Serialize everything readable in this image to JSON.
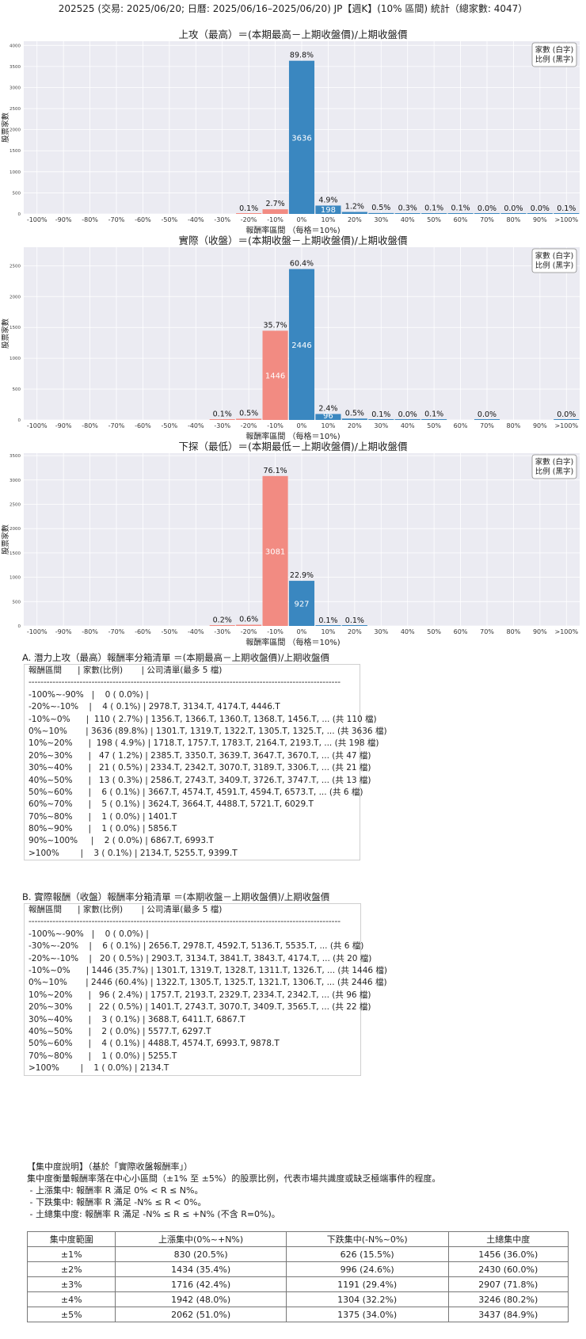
{
  "header": {
    "title": "202525 (交易: 2025/06/20; 日曆: 2025/06/16–2025/06/20) JP【週K】(10% 區間) 統計（總家數: 4047）"
  },
  "chart_data": [
    {
      "type": "bar",
      "title": "上攻（最高）＝(本期最高－上期收盤價)/上期收盤價",
      "xlabel": "報酬率區間 （每格＝10%)",
      "ylabel": "股票家數",
      "legend": [
        "家數 (白字)",
        "比例 (黑字)"
      ],
      "legend_position": "top-right",
      "categories": [
        "-100%",
        "-90%",
        "-80%",
        "-70%",
        "-60%",
        "-50%",
        "-40%",
        "-30%",
        "-20%",
        "-10%",
        "0%",
        "10%",
        "20%",
        "30%",
        "40%",
        "50%",
        "60%",
        "70%",
        "80%",
        "90%",
        ">100%"
      ],
      "ylim": [
        0,
        4100
      ],
      "yticks": [
        0,
        500,
        1000,
        1500,
        2000,
        2500,
        3000,
        3500,
        4000
      ],
      "series": [
        {
          "values": [
            0,
            0,
            0,
            0,
            0,
            0,
            0,
            0,
            4,
            110,
            3636,
            198,
            47,
            21,
            13,
            6,
            5,
            1,
            1,
            2,
            3
          ],
          "ratio_labels": [
            "",
            "",
            "",
            "",
            "",
            "",
            "",
            "",
            "0.1%",
            "2.7%",
            "89.8%",
            "4.9%",
            "1.2%",
            "0.5%",
            "0.3%",
            "0.1%",
            "0.1%",
            "0.0%",
            "0.0%",
            "0.0%",
            "0.1%"
          ],
          "count_labels": [
            "",
            "",
            "",
            "",
            "",
            "",
            "",
            "",
            "",
            "",
            "3636",
            "198",
            "",
            "",
            "",
            "",
            "",
            "",
            "",
            "",
            ""
          ]
        }
      ]
    },
    {
      "type": "bar",
      "title": "實際（收盤）＝(本期收盤－上期收盤價)/上期收盤價",
      "xlabel": "報酬率區間 （每格＝10%)",
      "ylabel": "股票家數",
      "legend": [
        "家數 (白字)",
        "比例 (黑字)"
      ],
      "legend_position": "top-right",
      "categories": [
        "-100%",
        "-90%",
        "-80%",
        "-70%",
        "-60%",
        "-50%",
        "-40%",
        "-30%",
        "-20%",
        "-10%",
        "0%",
        "10%",
        "20%",
        "30%",
        "40%",
        "50%",
        "60%",
        "70%",
        "80%",
        "90%",
        ">100%"
      ],
      "ylim": [
        0,
        2800
      ],
      "yticks": [
        0,
        500,
        1000,
        1500,
        2000,
        2500
      ],
      "series": [
        {
          "values": [
            0,
            0,
            0,
            0,
            0,
            0,
            0,
            6,
            20,
            1446,
            2446,
            96,
            22,
            3,
            2,
            4,
            0,
            1,
            0,
            0,
            1
          ],
          "ratio_labels": [
            "",
            "",
            "",
            "",
            "",
            "",
            "",
            "0.1%",
            "0.5%",
            "35.7%",
            "60.4%",
            "2.4%",
            "0.5%",
            "0.1%",
            "0.0%",
            "0.1%",
            "",
            "0.0%",
            "",
            "",
            "0.0%"
          ],
          "count_labels": [
            "",
            "",
            "",
            "",
            "",
            "",
            "",
            "",
            "",
            "1446",
            "2446",
            "96",
            "",
            "",
            "",
            "",
            "",
            "",
            "",
            "",
            ""
          ]
        }
      ]
    },
    {
      "type": "bar",
      "title": "下探（最低）＝(本期最低－上期收盤價)/上期收盤價",
      "xlabel": "報酬率區間 （每格＝10%)",
      "ylabel": "股票家數",
      "legend": [
        "家數 (白字)",
        "比例 (黑字)"
      ],
      "legend_position": "top-right",
      "categories": [
        "-100%",
        "-90%",
        "-80%",
        "-70%",
        "-60%",
        "-50%",
        "-40%",
        "-30%",
        "-20%",
        "-10%",
        "0%",
        "10%",
        "20%",
        "30%",
        "40%",
        "50%",
        "60%",
        "70%",
        "80%",
        "90%",
        ">100%"
      ],
      "ylim": [
        0,
        3550
      ],
      "yticks": [
        0,
        500,
        1000,
        1500,
        2000,
        2500,
        3000,
        3500
      ],
      "series": [
        {
          "values": [
            0,
            0,
            0,
            0,
            0,
            0,
            0,
            8,
            24,
            3081,
            927,
            3,
            2,
            0,
            0,
            0,
            0,
            0,
            0,
            0,
            0
          ],
          "ratio_labels": [
            "",
            "",
            "",
            "",
            "",
            "",
            "",
            "0.2%",
            "0.6%",
            "76.1%",
            "22.9%",
            "0.1%",
            "0.1%",
            "",
            "",
            "",
            "",
            "",
            "",
            "",
            ""
          ],
          "count_labels": [
            "",
            "",
            "",
            "",
            "",
            "",
            "",
            "",
            "",
            "3081",
            "927",
            "",
            "",
            "",
            "",
            "",
            "",
            "",
            "",
            "",
            ""
          ]
        }
      ]
    }
  ],
  "colors": {
    "negative": "#f28b82",
    "positive": "#3a87c0",
    "plot_bg": "#ebebf2",
    "grid": "#ffffff"
  },
  "section_a": {
    "heading": "A. 潛力上攻（最高）報酬率分箱清單 ＝(本期最高－上期收盤價)/上期收盤價",
    "rows": [
      "報酬區間      | 家數(比例)       | 公司清單(最多 5 檔)",
      "--------------------------------------------------------------------------------------------------------",
      "-100%~-90%   |    0 ( 0.0%) |",
      "-20%~-10%    |    4 ( 0.1%) | 2978.T, 3134.T, 4174.T, 4446.T",
      "-10%~0%      |  110 ( 2.7%) | 1356.T, 1366.T, 1360.T, 1368.T, 1456.T, ... (共 110 檔)",
      "0%~10%       | 3636 (89.8%) | 1301.T, 1319.T, 1322.T, 1305.T, 1325.T, ... (共 3636 檔)",
      "10%~20%      |  198 ( 4.9%) | 1718.T, 1757.T, 1783.T, 2164.T, 2193.T, ... (共 198 檔)",
      "20%~30%      |   47 ( 1.2%) | 2385.T, 3350.T, 3639.T, 3647.T, 3670.T, ... (共 47 檔)",
      "30%~40%      |   21 ( 0.5%) | 2334.T, 2342.T, 3070.T, 3189.T, 3306.T, ... (共 21 檔)",
      "40%~50%      |   13 ( 0.3%) | 2586.T, 2743.T, 3409.T, 3726.T, 3747.T, ... (共 13 檔)",
      "50%~60%      |    6 ( 0.1%) | 3667.T, 4574.T, 4591.T, 4594.T, 6573.T, ... (共 6 檔)",
      "60%~70%      |    5 ( 0.1%) | 3624.T, 3664.T, 4488.T, 5721.T, 6029.T",
      "70%~80%      |    1 ( 0.0%) | 1401.T",
      "80%~90%      |    1 ( 0.0%) | 5856.T",
      "90%~100%     |    2 ( 0.0%) | 6867.T, 6993.T",
      ">100%        |    3 ( 0.1%) | 2134.T, 5255.T, 9399.T"
    ]
  },
  "section_b": {
    "heading": "B. 實際報酬（收盤）報酬率分箱清單 ＝(本期收盤－上期收盤價)/上期收盤價",
    "rows": [
      "報酬區間      | 家數(比例)       | 公司清單(最多 5 檔)",
      "--------------------------------------------------------------------------------------------------------",
      "-100%~-90%   |    0 ( 0.0%) |",
      "-30%~-20%    |    6 ( 0.1%) | 2656.T, 2978.T, 4592.T, 5136.T, 5535.T, ... (共 6 檔)",
      "-20%~-10%    |   20 ( 0.5%) | 2903.T, 3134.T, 3841.T, 3843.T, 4174.T, ... (共 20 檔)",
      "-10%~0%      | 1446 (35.7%) | 1301.T, 1319.T, 1328.T, 1311.T, 1326.T, ... (共 1446 檔)",
      "0%~10%       | 2446 (60.4%) | 1322.T, 1305.T, 1325.T, 1321.T, 1306.T, ... (共 2446 檔)",
      "10%~20%      |   96 ( 2.4%) | 1757.T, 2193.T, 2329.T, 2334.T, 2342.T, ... (共 96 檔)",
      "20%~30%      |   22 ( 0.5%) | 1401.T, 2743.T, 3070.T, 3409.T, 3565.T, ... (共 22 檔)",
      "30%~40%      |    3 ( 0.1%) | 3688.T, 6411.T, 6867.T",
      "40%~50%      |    2 ( 0.0%) | 5577.T, 6297.T",
      "50%~60%      |    4 ( 0.1%) | 4488.T, 4574.T, 6993.T, 9878.T",
      "70%~80%      |    1 ( 0.0%) | 5255.T",
      ">100%        |    1 ( 0.0%) | 2134.T"
    ]
  },
  "concentration": {
    "notes": [
      "【集中度說明】（基於「實際收盤報酬率」）",
      "集中度衡量報酬率落在中心小區間（±1% 至 ±5%）的股票比例，代表市場共識度或缺乏極端事件的程度。",
      " - 上漲集中: 報酬率 R 滿足 0% < R ≤ N%。",
      " - 下跌集中: 報酬率 R 滿足 -N% ≤ R < 0%。",
      " - 土總集中度: 報酬率 R 滿足 -N% ≤ R ≤ +N% (不含 R=0%)。"
    ],
    "headers": [
      "集中度範圍",
      "上漲集中(0%~+N%)",
      "下跌集中(-N%~0%)",
      "土總集中度"
    ],
    "rows": [
      [
        "±1%",
        "830 (20.5%)",
        "626 (15.5%)",
        "1456 (36.0%)"
      ],
      [
        "±2%",
        "1434 (35.4%)",
        "996 (24.6%)",
        "2430 (60.0%)"
      ],
      [
        "±3%",
        "1716 (42.4%)",
        "1191 (29.4%)",
        "2907 (71.8%)"
      ],
      [
        "±4%",
        "1942 (48.0%)",
        "1304 (32.2%)",
        "3246 (80.2%)"
      ],
      [
        "±5%",
        "2062 (51.0%)",
        "1375 (34.0%)",
        "3437 (84.9%)"
      ]
    ]
  }
}
